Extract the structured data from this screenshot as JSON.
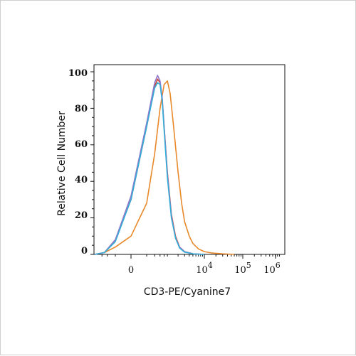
{
  "chart_data": {
    "type": "line",
    "title": "",
    "xlabel": "CD3-PE/Cyanine7",
    "ylabel": "Relative Cell Number",
    "xscale": "biexponential",
    "xlim": [
      -1000,
      1000000
    ],
    "ylim": [
      0,
      100
    ],
    "grid": false,
    "legend": "none",
    "y_ticks": [
      "0",
      "20",
      "40",
      "60",
      "80",
      "100"
    ],
    "x_ticks": [
      {
        "base": "0",
        "exp": ""
      },
      {
        "base": "10",
        "exp": "4"
      },
      {
        "base": "10",
        "exp": "5"
      },
      {
        "base": "10",
        "exp": "6"
      }
    ],
    "series": [
      {
        "color": "#e8892b",
        "x": [
          -1000,
          -500,
          -200,
          0,
          200,
          400,
          600,
          800,
          1000,
          1200,
          1500,
          2000,
          2500,
          3000,
          4000,
          5000,
          7000,
          10000,
          15000,
          30000,
          60000
        ],
        "y": [
          0,
          1,
          4,
          10,
          28,
          55,
          80,
          93,
          95,
          88,
          70,
          45,
          28,
          18,
          10,
          6,
          3,
          1.5,
          0.8,
          0.3,
          0
        ]
      },
      {
        "color": "#c94a3d",
        "x": [
          -1000,
          -500,
          -200,
          0,
          200,
          400,
          500,
          600,
          700,
          800,
          1000,
          1300,
          1700,
          2200,
          3000,
          5000,
          10000
        ],
        "y": [
          0,
          1,
          8,
          30,
          70,
          92,
          96,
          94,
          85,
          70,
          45,
          22,
          10,
          4,
          1.5,
          0.3,
          0
        ]
      },
      {
        "color": "#8f76c9",
        "x": [
          -1000,
          -500,
          -200,
          0,
          200,
          400,
          500,
          600,
          700,
          800,
          1000,
          1300,
          1700,
          2200,
          3000,
          5000,
          10000
        ],
        "y": [
          0,
          1,
          8,
          32,
          72,
          94,
          98,
          95,
          86,
          70,
          44,
          21,
          9,
          4,
          1.5,
          0.3,
          0
        ]
      },
      {
        "color": "#33aed8",
        "x": [
          -1000,
          -500,
          -200,
          0,
          200,
          400,
          500,
          600,
          700,
          800,
          1000,
          1300,
          1700,
          2200,
          3000,
          5000,
          10000
        ],
        "y": [
          0,
          1,
          7,
          30,
          70,
          91,
          94,
          93,
          84,
          68,
          42,
          20,
          9,
          3.5,
          1.2,
          0.3,
          0
        ]
      }
    ]
  }
}
